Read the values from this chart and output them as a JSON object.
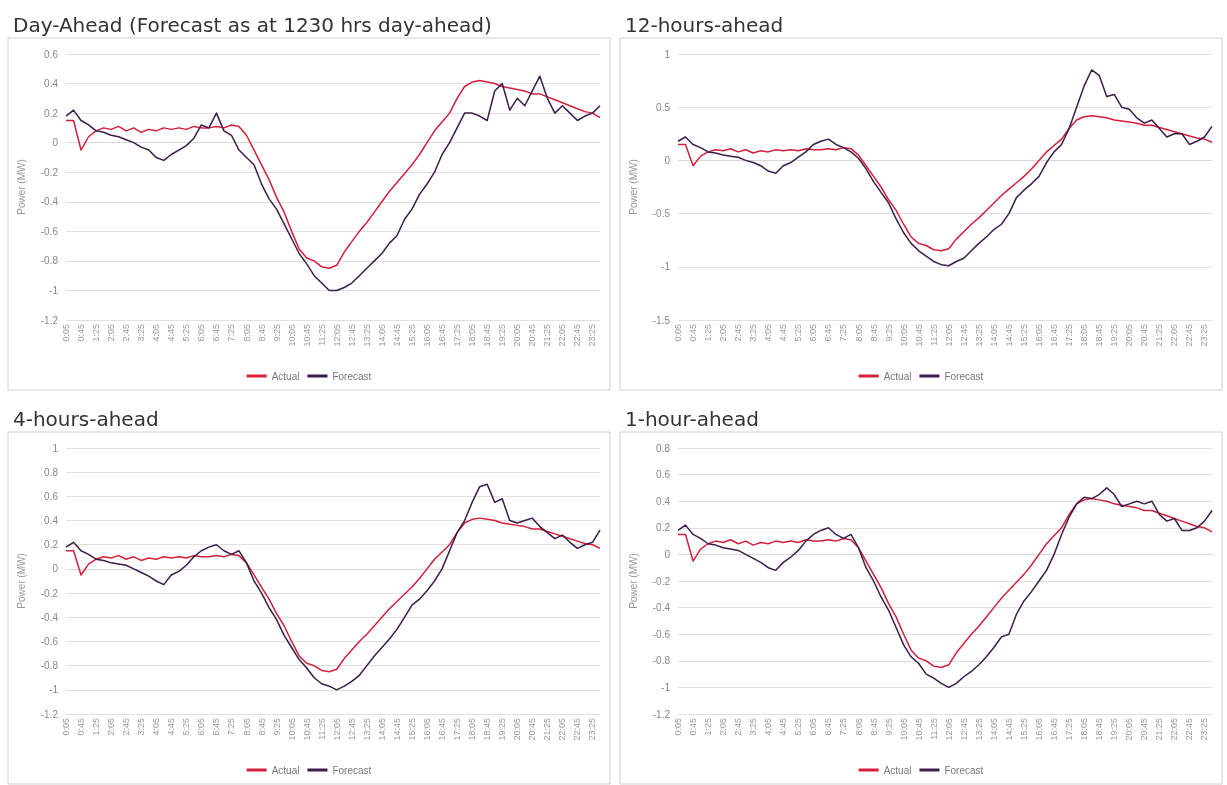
{
  "chart_data": [
    {
      "type": "line",
      "title": "Day-Ahead (Forecast as at 1230 hrs day-ahead)",
      "ylabel": "Power (MW)",
      "categories": [
        "0:05",
        null,
        "0:45",
        null,
        "1:25",
        null,
        "2:05",
        null,
        "2:45",
        null,
        "3:25",
        null,
        "4:05",
        null,
        "4:45",
        null,
        "5:25",
        null,
        "6:05",
        null,
        "6:45",
        null,
        "7:25",
        null,
        "8:05",
        null,
        "8:45",
        null,
        "9:25",
        null,
        "10:05",
        null,
        "10:45",
        null,
        "11:25",
        null,
        "12:05",
        null,
        "12:45",
        null,
        "13:25",
        null,
        "14:05",
        null,
        "14:45",
        null,
        "15:25",
        null,
        "16:05",
        null,
        "16:45",
        null,
        "17:25",
        null,
        "18:05",
        null,
        "18:45",
        null,
        "19:25",
        null,
        "20:05",
        null,
        "20:45",
        null,
        "21:25",
        null,
        "22:05",
        null,
        "22:45",
        null,
        "23:25",
        null
      ],
      "series": [
        {
          "name": "Actual",
          "color": "#d21f3c",
          "values": [
            0.15,
            0.15,
            -0.05,
            0.04,
            0.08,
            0.1,
            0.09,
            0.11,
            0.08,
            0.1,
            0.07,
            0.09,
            0.08,
            0.1,
            0.09,
            0.1,
            0.09,
            0.11,
            0.1,
            0.1,
            0.11,
            0.1,
            0.12,
            0.11,
            0.05,
            -0.05,
            -0.15,
            -0.25,
            -0.37,
            -0.47,
            -0.6,
            -0.72,
            -0.78,
            -0.8,
            -0.84,
            -0.85,
            -0.83,
            -0.74,
            -0.67,
            -0.6,
            -0.54,
            -0.47,
            -0.4,
            -0.33,
            -0.27,
            -0.21,
            -0.15,
            -0.08,
            0.0,
            0.08,
            0.14,
            0.2,
            0.3,
            0.38,
            0.41,
            0.42,
            0.41,
            0.4,
            0.38,
            0.37,
            0.36,
            0.35,
            0.33,
            0.33,
            0.31,
            0.29,
            0.27,
            0.25,
            0.23,
            0.21,
            0.2,
            0.17
          ]
        },
        {
          "name": "Forecast",
          "color": "#3b1c4a",
          "values": [
            0.18,
            0.22,
            0.15,
            0.12,
            0.08,
            0.07,
            0.05,
            0.04,
            0.02,
            0.0,
            -0.03,
            -0.05,
            -0.1,
            -0.12,
            -0.08,
            -0.05,
            -0.02,
            0.03,
            0.12,
            0.1,
            0.2,
            0.08,
            0.05,
            -0.05,
            -0.1,
            -0.15,
            -0.28,
            -0.38,
            -0.45,
            -0.55,
            -0.65,
            -0.75,
            -0.82,
            -0.9,
            -0.95,
            -1.0,
            -1.0,
            -0.98,
            -0.95,
            -0.9,
            -0.85,
            -0.8,
            -0.75,
            -0.68,
            -0.63,
            -0.52,
            -0.45,
            -0.35,
            -0.28,
            -0.2,
            -0.08,
            0.0,
            0.1,
            0.2,
            0.2,
            0.18,
            0.15,
            0.35,
            0.4,
            0.22,
            0.3,
            0.25,
            0.35,
            0.45,
            0.3,
            0.2,
            0.25,
            0.2,
            0.15,
            0.18,
            0.2,
            0.25
          ]
        }
      ],
      "ylim": [
        -1.2,
        0.6
      ],
      "yticks": [
        -1.2,
        -1,
        -0.8,
        -0.6,
        -0.4,
        -0.2,
        0,
        0.2,
        0.4,
        0.6
      ],
      "grid": "y",
      "legend": "bottom",
      "marker": "none"
    },
    {
      "type": "line",
      "title": "12-hours-ahead",
      "ylabel": "Power (MW)",
      "categories": [
        "0:05",
        null,
        "0:45",
        null,
        "1:25",
        null,
        "2:05",
        null,
        "2:45",
        null,
        "3:25",
        null,
        "4:05",
        null,
        "4:45",
        null,
        "5:25",
        null,
        "6:05",
        null,
        "6:45",
        null,
        "7:25",
        null,
        "8:05",
        null,
        "8:45",
        null,
        "9:25",
        null,
        "10:05",
        null,
        "10:45",
        null,
        "11:25",
        null,
        "12:05",
        null,
        "12:45",
        null,
        "13:25",
        null,
        "14:05",
        null,
        "14:45",
        null,
        "15:25",
        null,
        "16:05",
        null,
        "16:45",
        null,
        "17:25",
        null,
        "18:05",
        null,
        "18:45",
        null,
        "19:25",
        null,
        "20:05",
        null,
        "20:45",
        null,
        "21:25",
        null,
        "22:05",
        null,
        "22:45",
        null,
        "23:25",
        null
      ],
      "series": [
        {
          "name": "Actual",
          "color": "#d21f3c",
          "values": [
            0.15,
            0.15,
            -0.05,
            0.04,
            0.08,
            0.1,
            0.09,
            0.11,
            0.08,
            0.1,
            0.07,
            0.09,
            0.08,
            0.1,
            0.09,
            0.1,
            0.09,
            0.11,
            0.1,
            0.1,
            0.11,
            0.1,
            0.12,
            0.11,
            0.05,
            -0.05,
            -0.15,
            -0.25,
            -0.37,
            -0.47,
            -0.6,
            -0.72,
            -0.78,
            -0.8,
            -0.84,
            -0.85,
            -0.83,
            -0.74,
            -0.67,
            -0.6,
            -0.54,
            -0.47,
            -0.4,
            -0.33,
            -0.27,
            -0.21,
            -0.15,
            -0.08,
            0.0,
            0.08,
            0.14,
            0.2,
            0.3,
            0.38,
            0.41,
            0.42,
            0.41,
            0.4,
            0.38,
            0.37,
            0.36,
            0.35,
            0.33,
            0.33,
            0.31,
            0.29,
            0.27,
            0.25,
            0.23,
            0.21,
            0.2,
            0.17
          ]
        },
        {
          "name": "Forecast",
          "color": "#3b1c4a",
          "values": [
            0.18,
            0.22,
            0.15,
            0.12,
            0.08,
            0.07,
            0.05,
            0.04,
            0.03,
            0.0,
            -0.02,
            -0.05,
            -0.1,
            -0.12,
            -0.05,
            -0.02,
            0.03,
            0.08,
            0.15,
            0.18,
            0.2,
            0.15,
            0.12,
            0.08,
            0.02,
            -0.08,
            -0.2,
            -0.3,
            -0.4,
            -0.55,
            -0.68,
            -0.78,
            -0.85,
            -0.9,
            -0.95,
            -0.98,
            -0.99,
            -0.95,
            -0.92,
            -0.85,
            -0.78,
            -0.72,
            -0.65,
            -0.6,
            -0.5,
            -0.35,
            -0.28,
            -0.22,
            -0.15,
            -0.02,
            0.08,
            0.15,
            0.3,
            0.5,
            0.7,
            0.85,
            0.8,
            0.6,
            0.62,
            0.5,
            0.48,
            0.4,
            0.35,
            0.38,
            0.3,
            0.22,
            0.25,
            0.25,
            0.15,
            0.18,
            0.22,
            0.32
          ]
        }
      ],
      "ylim": [
        -1.5,
        1
      ],
      "yticks": [
        -1.5,
        -1,
        -0.5,
        0,
        0.5,
        1
      ],
      "grid": "y",
      "legend": "bottom",
      "marker": "none"
    },
    {
      "type": "line",
      "title": "4-hours-ahead",
      "ylabel": "Power (MW)",
      "categories": [
        "0:05",
        null,
        "0:45",
        null,
        "1:25",
        null,
        "2:05",
        null,
        "2:45",
        null,
        "3:25",
        null,
        "4:05",
        null,
        "4:45",
        null,
        "5:25",
        null,
        "6:05",
        null,
        "6:45",
        null,
        "7:25",
        null,
        "8:05",
        null,
        "8:45",
        null,
        "9:25",
        null,
        "10:05",
        null,
        "10:45",
        null,
        "11:25",
        null,
        "12:05",
        null,
        "12:45",
        null,
        "13:25",
        null,
        "14:05",
        null,
        "14:45",
        null,
        "15:25",
        null,
        "16:05",
        null,
        "16:45",
        null,
        "17:25",
        null,
        "18:05",
        null,
        "18:45",
        null,
        "19:25",
        null,
        "20:05",
        null,
        "20:45",
        null,
        "21:25",
        null,
        "22:05",
        null,
        "22:45",
        null,
        "23:25",
        null
      ],
      "series": [
        {
          "name": "Actual",
          "color": "#d21f3c",
          "values": [
            0.15,
            0.15,
            -0.05,
            0.04,
            0.08,
            0.1,
            0.09,
            0.11,
            0.08,
            0.1,
            0.07,
            0.09,
            0.08,
            0.1,
            0.09,
            0.1,
            0.09,
            0.11,
            0.1,
            0.1,
            0.11,
            0.1,
            0.12,
            0.11,
            0.05,
            -0.05,
            -0.15,
            -0.25,
            -0.37,
            -0.47,
            -0.6,
            -0.72,
            -0.78,
            -0.8,
            -0.84,
            -0.85,
            -0.83,
            -0.74,
            -0.67,
            -0.6,
            -0.54,
            -0.47,
            -0.4,
            -0.33,
            -0.27,
            -0.21,
            -0.15,
            -0.08,
            0.0,
            0.08,
            0.14,
            0.2,
            0.3,
            0.38,
            0.41,
            0.42,
            0.41,
            0.4,
            0.38,
            0.37,
            0.36,
            0.35,
            0.33,
            0.33,
            0.31,
            0.29,
            0.27,
            0.25,
            0.23,
            0.21,
            0.2,
            0.17
          ]
        },
        {
          "name": "Forecast",
          "color": "#3b1c4a",
          "values": [
            0.18,
            0.22,
            0.15,
            0.12,
            0.08,
            0.07,
            0.05,
            0.04,
            0.03,
            0.0,
            -0.03,
            -0.06,
            -0.1,
            -0.13,
            -0.05,
            -0.02,
            0.03,
            0.1,
            0.15,
            0.18,
            0.2,
            0.15,
            0.12,
            0.15,
            0.05,
            -0.1,
            -0.2,
            -0.32,
            -0.42,
            -0.55,
            -0.65,
            -0.75,
            -0.82,
            -0.9,
            -0.95,
            -0.97,
            -1.0,
            -0.97,
            -0.93,
            -0.88,
            -0.8,
            -0.72,
            -0.65,
            -0.58,
            -0.5,
            -0.4,
            -0.3,
            -0.25,
            -0.18,
            -0.1,
            0.0,
            0.15,
            0.3,
            0.4,
            0.55,
            0.68,
            0.7,
            0.55,
            0.58,
            0.4,
            0.38,
            0.4,
            0.42,
            0.35,
            0.3,
            0.25,
            0.28,
            0.22,
            0.17,
            0.2,
            0.22,
            0.32
          ]
        }
      ],
      "ylim": [
        -1.2,
        1
      ],
      "yticks": [
        -1.2,
        -1,
        -0.8,
        -0.6,
        -0.4,
        -0.2,
        0,
        0.2,
        0.4,
        0.6,
        0.8,
        1
      ],
      "grid": "y",
      "legend": "bottom",
      "marker": "none"
    },
    {
      "type": "line",
      "title": "1-hour-ahead",
      "ylabel": "Power (MW)",
      "categories": [
        "0:05",
        null,
        "0:45",
        null,
        "1:25",
        null,
        "2:05",
        null,
        "2:45",
        null,
        "3:25",
        null,
        "4:05",
        null,
        "4:45",
        null,
        "5:25",
        null,
        "6:05",
        null,
        "6:45",
        null,
        "7:25",
        null,
        "8:05",
        null,
        "8:45",
        null,
        "9:25",
        null,
        "10:05",
        null,
        "10:45",
        null,
        "11:25",
        null,
        "12:05",
        null,
        "12:45",
        null,
        "13:25",
        null,
        "14:05",
        null,
        "14:45",
        null,
        "15:25",
        null,
        "16:05",
        null,
        "16:45",
        null,
        "17:25",
        null,
        "18:05",
        null,
        "18:45",
        null,
        "19:25",
        null,
        "20:05",
        null,
        "20:45",
        null,
        "21:25",
        null,
        "22:05",
        null,
        "22:45",
        null,
        "23:25",
        null
      ],
      "series": [
        {
          "name": "Actual",
          "color": "#d21f3c",
          "values": [
            0.15,
            0.15,
            -0.05,
            0.04,
            0.08,
            0.1,
            0.09,
            0.11,
            0.08,
            0.1,
            0.07,
            0.09,
            0.08,
            0.1,
            0.09,
            0.1,
            0.09,
            0.11,
            0.1,
            0.1,
            0.11,
            0.1,
            0.12,
            0.11,
            0.05,
            -0.05,
            -0.15,
            -0.25,
            -0.37,
            -0.47,
            -0.6,
            -0.72,
            -0.78,
            -0.8,
            -0.84,
            -0.85,
            -0.83,
            -0.74,
            -0.67,
            -0.6,
            -0.54,
            -0.47,
            -0.4,
            -0.33,
            -0.27,
            -0.21,
            -0.15,
            -0.08,
            0.0,
            0.08,
            0.14,
            0.2,
            0.3,
            0.38,
            0.41,
            0.42,
            0.41,
            0.4,
            0.38,
            0.37,
            0.36,
            0.35,
            0.33,
            0.33,
            0.31,
            0.29,
            0.27,
            0.25,
            0.23,
            0.21,
            0.2,
            0.17
          ]
        },
        {
          "name": "Forecast",
          "color": "#3b1c4a",
          "values": [
            0.18,
            0.22,
            0.15,
            0.12,
            0.08,
            0.07,
            0.05,
            0.04,
            0.03,
            0.0,
            -0.03,
            -0.06,
            -0.1,
            -0.12,
            -0.06,
            -0.02,
            0.03,
            0.1,
            0.15,
            0.18,
            0.2,
            0.15,
            0.12,
            0.15,
            0.05,
            -0.1,
            -0.2,
            -0.32,
            -0.42,
            -0.55,
            -0.68,
            -0.77,
            -0.82,
            -0.9,
            -0.93,
            -0.97,
            -1.0,
            -0.97,
            -0.92,
            -0.88,
            -0.83,
            -0.77,
            -0.7,
            -0.62,
            -0.6,
            -0.45,
            -0.35,
            -0.28,
            -0.2,
            -0.12,
            0.0,
            0.15,
            0.28,
            0.38,
            0.43,
            0.42,
            0.45,
            0.5,
            0.45,
            0.36,
            0.38,
            0.4,
            0.38,
            0.4,
            0.3,
            0.25,
            0.27,
            0.18,
            0.18,
            0.2,
            0.25,
            0.33
          ]
        }
      ],
      "ylim": [
        -1.2,
        0.8
      ],
      "yticks": [
        -1.2,
        -1,
        -0.8,
        -0.6,
        -0.4,
        -0.2,
        0,
        0.2,
        0.4,
        0.6,
        0.8
      ],
      "grid": "y",
      "legend": "bottom",
      "marker": "none"
    }
  ]
}
